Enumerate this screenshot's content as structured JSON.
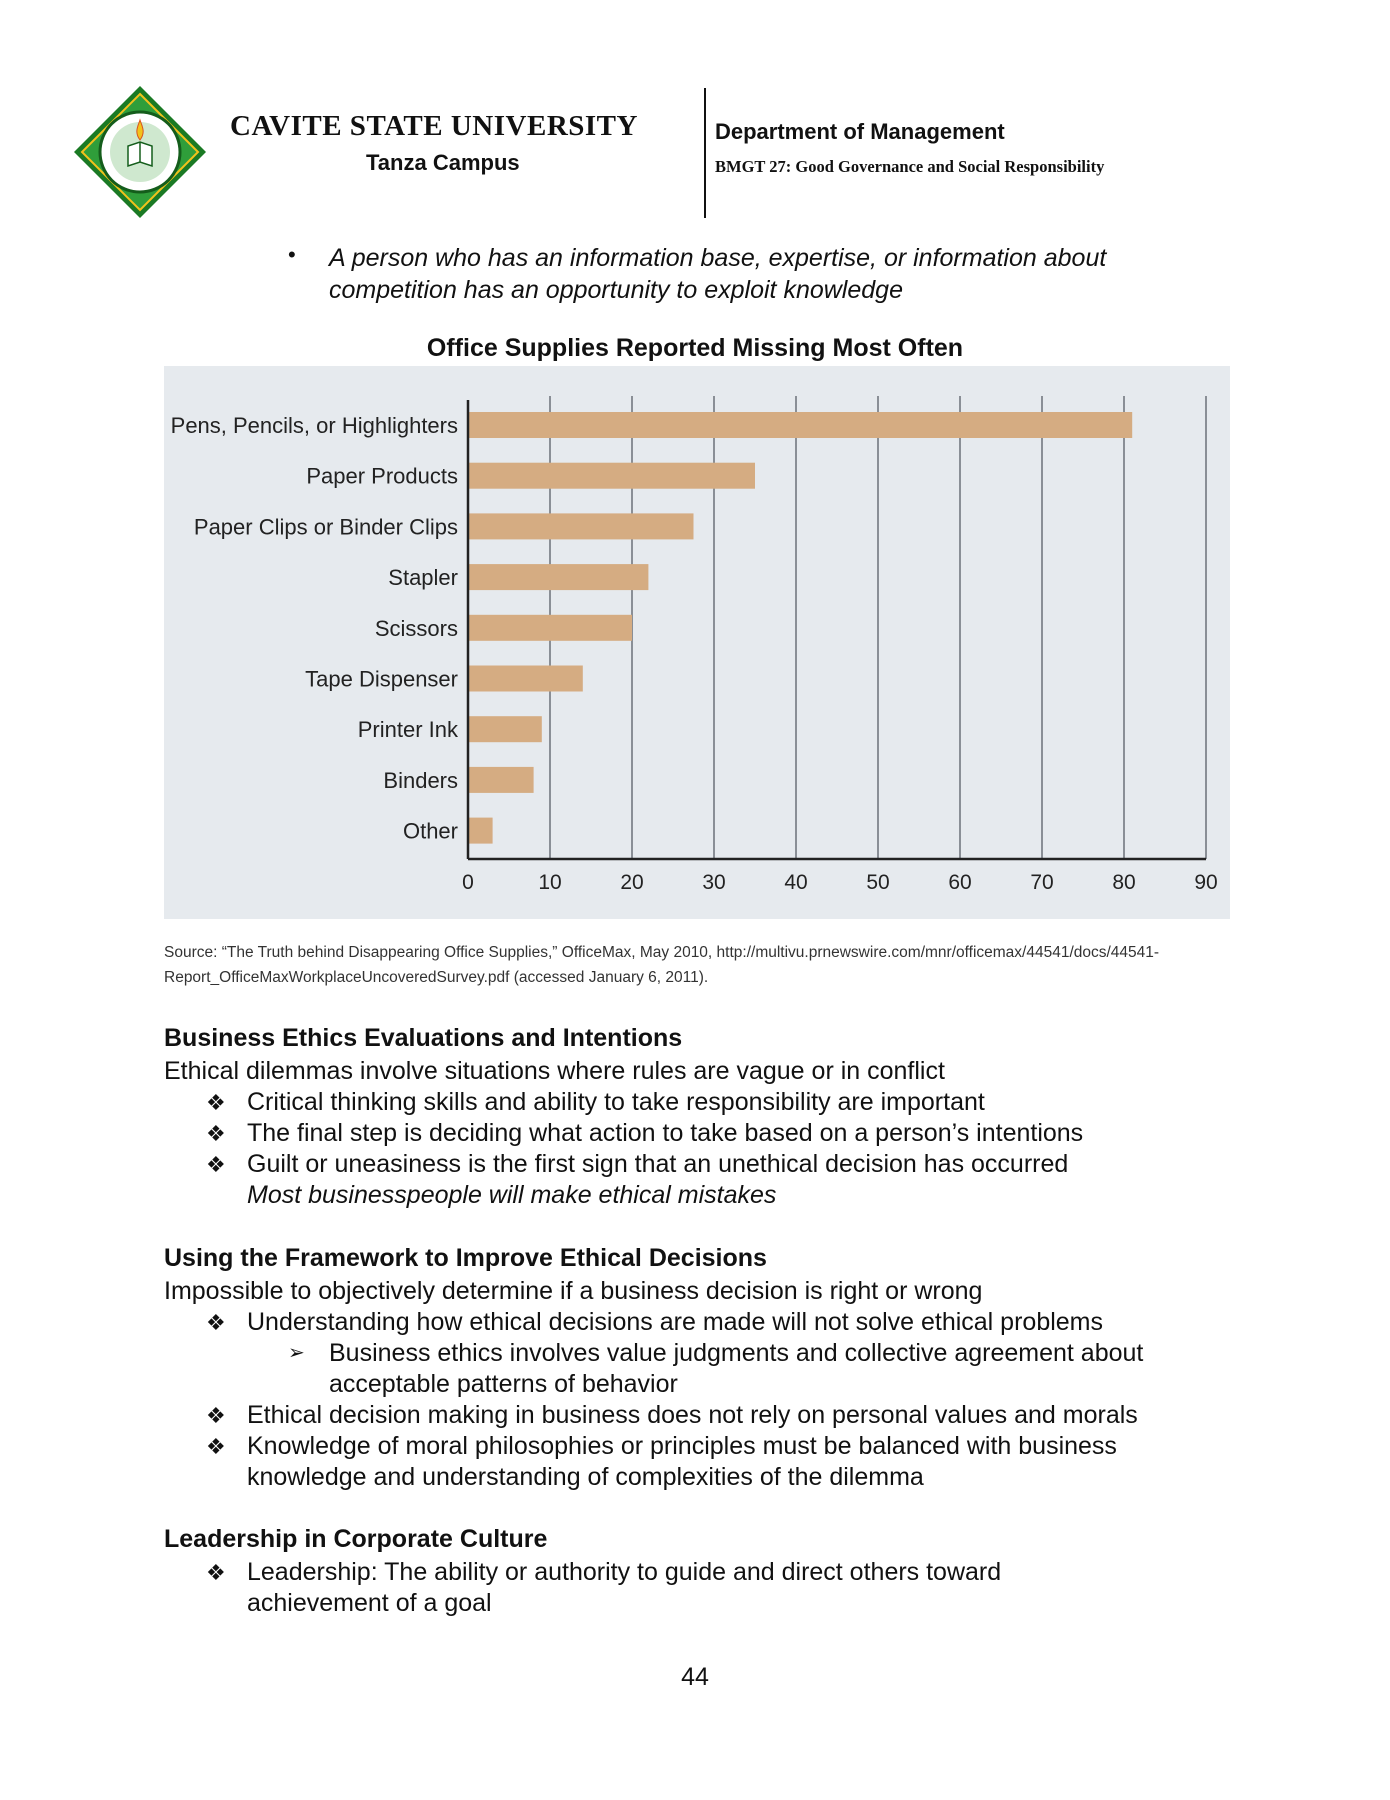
{
  "header": {
    "university": "CAVITE STATE UNIVERSITY",
    "campus": "Tanza Campus",
    "department": "Department of Management",
    "course": "BMGT 27: Good Governance and Social Responsibility",
    "logo_icon": "university-seal-icon",
    "logo_colors": {
      "border": "#1a7a24",
      "inner": "#2f9e3a",
      "accent": "#f2c21b"
    }
  },
  "intro_bullet": {
    "bullet": "•",
    "text": "A person who has an information base, expertise, or information about competition has an opportunity to exploit knowledge"
  },
  "chart_title": "Office Supplies Reported Missing Most Often",
  "chart_data": {
    "type": "bar",
    "orientation": "horizontal",
    "categories": [
      "Pens, Pencils, or Highlighters",
      "Paper Products",
      "Paper Clips or Binder Clips",
      "Stapler",
      "Scissors",
      "Tape Dispenser",
      "Printer Ink",
      "Binders",
      "Other"
    ],
    "values": [
      81,
      35,
      27.5,
      22,
      20,
      14,
      9,
      8,
      3
    ],
    "xlim": [
      0,
      90
    ],
    "xticks": [
      "0",
      "10",
      "20",
      "30",
      "40",
      "50",
      "60",
      "70",
      "80",
      "90"
    ],
    "grid": "vertical",
    "bar_color": "#d5ac82",
    "background_color": "#e6eaee"
  },
  "chart_source": {
    "line1": "Source: “The Truth behind Disappearing Office Supplies,” OfficeMax, May 2010, http://multivu.prnewswire.com/mnr/officemax/44541/docs/44541-",
    "line2": "Report_OfficeMaxWorkplaceUncoveredSurvey.pdf (accessed January 6, 2011)."
  },
  "section1": {
    "heading": "Business Ethics Evaluations and Intentions",
    "intro": "Ethical dilemmas involve situations where rules are vague or in conflict",
    "bullets": [
      "Critical thinking skills and ability to take responsibility are important",
      "The final step is deciding what action to take based on a person’s intentions",
      "Guilt or uneasiness is the first sign that an unethical decision has occurred"
    ],
    "note": "Most businesspeople will make ethical mistakes"
  },
  "section2": {
    "heading": "Using the Framework to Improve Ethical Decisions",
    "intro": "Impossible to objectively determine if a business decision is right or wrong",
    "bullet1": "Understanding how ethical decisions are made will not solve ethical problems",
    "sub_bullet": "Business ethics involves value judgments and collective agreement about acceptable patterns of behavior",
    "bullet2": "Ethical decision making in business does not rely on personal values and morals",
    "bullet3": "Knowledge of moral philosophies or principles must be balanced with business knowledge and understanding of complexities of the dilemma"
  },
  "section3": {
    "heading": "Leadership in Corporate Culture",
    "bullet": "Leadership: The ability or authority to guide and direct others toward achievement of a goal"
  },
  "symbols": {
    "diamond": "❖",
    "arrow": "➢"
  },
  "page_number": "44"
}
